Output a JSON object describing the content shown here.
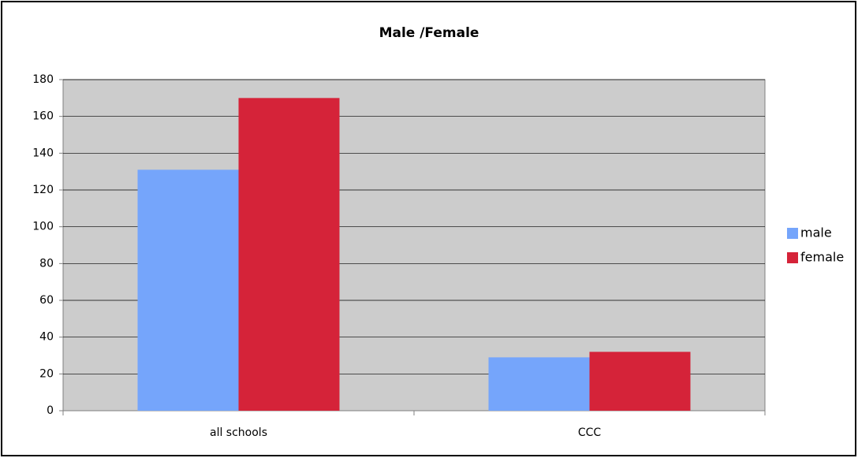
{
  "chart_data": {
    "type": "bar",
    "title": "Male /Female",
    "categories": [
      "all schools",
      "CCC"
    ],
    "series": [
      {
        "name": "male",
        "color": "#75a5fb",
        "values": [
          131,
          29
        ]
      },
      {
        "name": "female",
        "color": "#d52339",
        "values": [
          170,
          32
        ]
      }
    ],
    "ylim": [
      0,
      180
    ],
    "yticks": [
      0,
      20,
      40,
      60,
      80,
      100,
      120,
      140,
      160,
      180
    ],
    "grid": true,
    "legend": "right"
  }
}
